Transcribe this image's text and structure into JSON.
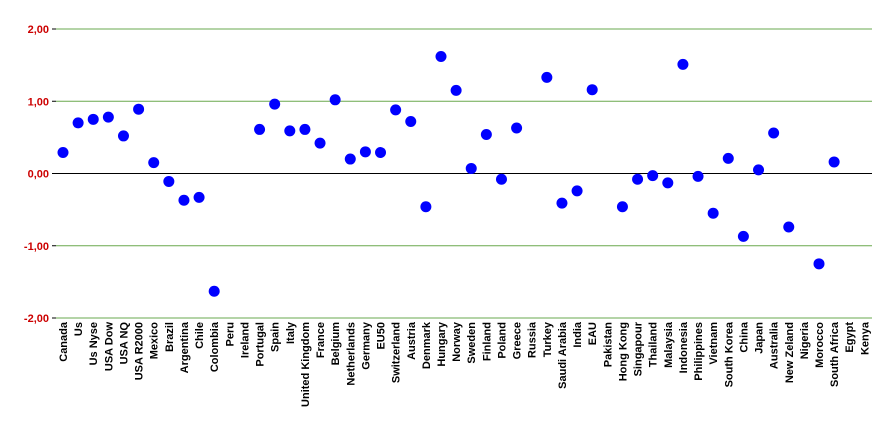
{
  "chart_data": {
    "type": "scatter",
    "categories": [
      "Canada",
      "Us",
      "Us Nyse",
      "USA Dow",
      "USA NQ",
      "USA R2000",
      "Mexico",
      "Brazil",
      "Argentina",
      "Chile",
      "Colombia",
      "Peru",
      "Ireland",
      "Portugal",
      "Spain",
      "Italy",
      "United Kingdom",
      "France",
      "Belgium",
      "Netherlands",
      "Germany",
      "EU50",
      "Switzerland",
      "Austria",
      "Denmark",
      "Hungary",
      "Norway",
      "Sweden",
      "Finland",
      "Poland",
      "Greece",
      "Russia",
      "Turkey",
      "Saudi Arabia",
      "India",
      "EAU",
      "Pakistan",
      "Hong Kong",
      "Singapour",
      "Thailand",
      "Malaysia",
      "Indonesia",
      "Philippines",
      "Vietnam",
      "South Korea",
      "China",
      "Japan",
      "Australia",
      "New Zeland",
      "Nigeria",
      "Morocco",
      "South Africa",
      "Egypt",
      "Kenya"
    ],
    "series": [
      {
        "values": [
          0.29,
          0.7,
          0.75,
          0.78,
          0.52,
          0.89,
          0.15,
          -0.11,
          -0.37,
          -0.33,
          -1.63,
          null,
          null,
          0.61,
          0.96,
          0.59,
          0.61,
          0.42,
          1.02,
          0.2,
          0.3,
          0.29,
          0.88,
          0.72,
          -0.46,
          1.62,
          1.15,
          0.07,
          0.54,
          -0.08,
          0.63,
          null,
          1.33,
          -0.41,
          -0.24,
          1.16,
          null,
          -0.46,
          -0.08,
          -0.03,
          -0.13,
          1.51,
          -0.04,
          -0.55,
          0.21,
          -0.87,
          0.05,
          0.56,
          -0.74,
          null,
          -1.25,
          0.16,
          null,
          null
        ],
        "color": "#0000ff"
      }
    ],
    "ylim": [
      -2,
      2
    ],
    "yticks": [
      "2,00",
      "1,00",
      "0,00",
      "-1,00",
      "-2,00"
    ],
    "ytick_color": "#cc0000",
    "grid_color": "#6aa84f",
    "zero_line_color": "#000000",
    "grid": true,
    "legend": "none"
  }
}
